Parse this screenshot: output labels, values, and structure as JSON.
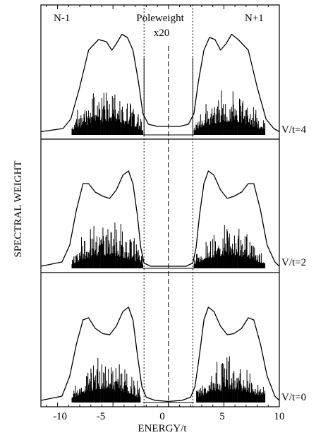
{
  "chart_data": {
    "type": "line",
    "xlabel": "ENERGY/t",
    "ylabel": "SPECTRAL WEIGHT",
    "xlim": [
      -11.5,
      10
    ],
    "xticks": [
      -10,
      -5,
      0,
      5,
      10
    ],
    "xtick_labels": [
      "-10",
      "-5",
      "0",
      "5",
      "10"
    ],
    "annotations": {
      "left": "N-1",
      "right": "N+1",
      "pole_title": "Poleweight",
      "pole_scale": "x20"
    },
    "guide_lines": {
      "dotted_x": [
        -2.2,
        2.2
      ],
      "dashed_x": [
        0
      ]
    },
    "panels": [
      {
        "label": "V/t=4",
        "pole_range": [
          -8.7,
          -2.3
        ],
        "extra_poles": [
          {
            "x": -2.2,
            "h": 0.73
          },
          {
            "x": 2.2,
            "h": 0.73
          }
        ],
        "envelope": [
          [
            -11.5,
            0.03
          ],
          [
            -9.5,
            0.06
          ],
          [
            -8.8,
            0.15
          ],
          [
            -8.0,
            0.45
          ],
          [
            -7.2,
            0.8
          ],
          [
            -6.3,
            0.9
          ],
          [
            -5.6,
            0.88
          ],
          [
            -5.1,
            0.8
          ],
          [
            -4.7,
            0.86
          ],
          [
            -4.2,
            0.95
          ],
          [
            -3.7,
            0.92
          ],
          [
            -3.2,
            0.8
          ],
          [
            -2.7,
            0.5
          ],
          [
            -2.3,
            0.2
          ],
          [
            -1.8,
            0.1
          ],
          [
            -1.0,
            0.08
          ],
          [
            0.0,
            0.08
          ],
          [
            1.0,
            0.08
          ],
          [
            1.8,
            0.1
          ],
          [
            2.3,
            0.2
          ],
          [
            2.7,
            0.5
          ],
          [
            3.2,
            0.8
          ],
          [
            3.7,
            0.92
          ],
          [
            4.2,
            0.9
          ],
          [
            4.7,
            0.8
          ],
          [
            5.2,
            0.86
          ],
          [
            5.7,
            0.95
          ],
          [
            6.3,
            0.9
          ],
          [
            7.2,
            0.8
          ],
          [
            8.0,
            0.45
          ],
          [
            8.8,
            0.15
          ],
          [
            9.5,
            0.06
          ],
          [
            10.0,
            0.03
          ]
        ]
      },
      {
        "label": "V/t=2",
        "pole_range": [
          -8.7,
          -2.3
        ],
        "extra_poles": [],
        "envelope": [
          [
            -11.5,
            0.02
          ],
          [
            -9.6,
            0.06
          ],
          [
            -8.9,
            0.22
          ],
          [
            -8.3,
            0.55
          ],
          [
            -7.7,
            0.8
          ],
          [
            -7.2,
            0.8
          ],
          [
            -6.6,
            0.72
          ],
          [
            -5.9,
            0.68
          ],
          [
            -5.3,
            0.66
          ],
          [
            -4.7,
            0.74
          ],
          [
            -4.1,
            0.88
          ],
          [
            -3.6,
            0.92
          ],
          [
            -3.2,
            0.8
          ],
          [
            -2.8,
            0.5
          ],
          [
            -2.5,
            0.2
          ],
          [
            -2.2,
            0.05
          ],
          [
            -1.6,
            0.02
          ],
          [
            0.0,
            0.02
          ],
          [
            1.6,
            0.02
          ],
          [
            2.2,
            0.05
          ],
          [
            2.5,
            0.2
          ],
          [
            2.8,
            0.5
          ],
          [
            3.2,
            0.8
          ],
          [
            3.6,
            0.92
          ],
          [
            4.1,
            0.88
          ],
          [
            4.7,
            0.74
          ],
          [
            5.3,
            0.66
          ],
          [
            5.9,
            0.68
          ],
          [
            6.6,
            0.72
          ],
          [
            7.2,
            0.8
          ],
          [
            7.7,
            0.8
          ],
          [
            8.3,
            0.55
          ],
          [
            8.9,
            0.22
          ],
          [
            9.6,
            0.06
          ],
          [
            10.0,
            0.02
          ]
        ]
      },
      {
        "label": "V/t=0",
        "pole_range": [
          -8.7,
          -2.5
        ],
        "extra_poles": [],
        "envelope": [
          [
            -11.5,
            0.02
          ],
          [
            -9.6,
            0.06
          ],
          [
            -8.9,
            0.25
          ],
          [
            -8.3,
            0.55
          ],
          [
            -7.7,
            0.78
          ],
          [
            -7.2,
            0.8
          ],
          [
            -6.6,
            0.7
          ],
          [
            -5.9,
            0.65
          ],
          [
            -5.3,
            0.64
          ],
          [
            -4.7,
            0.72
          ],
          [
            -4.1,
            0.86
          ],
          [
            -3.6,
            0.9
          ],
          [
            -3.2,
            0.78
          ],
          [
            -2.8,
            0.45
          ],
          [
            -2.4,
            0.15
          ],
          [
            -2.0,
            0.05
          ],
          [
            -1.2,
            0.02
          ],
          [
            0.0,
            0.01
          ],
          [
            1.2,
            0.02
          ],
          [
            2.0,
            0.05
          ],
          [
            2.4,
            0.15
          ],
          [
            2.8,
            0.45
          ],
          [
            3.2,
            0.78
          ],
          [
            3.6,
            0.9
          ],
          [
            4.1,
            0.86
          ],
          [
            4.7,
            0.72
          ],
          [
            5.3,
            0.64
          ],
          [
            5.9,
            0.65
          ],
          [
            6.6,
            0.7
          ],
          [
            7.2,
            0.8
          ],
          [
            7.7,
            0.78
          ],
          [
            8.3,
            0.55
          ],
          [
            8.9,
            0.25
          ],
          [
            9.6,
            0.06
          ],
          [
            10.0,
            0.02
          ]
        ]
      }
    ]
  }
}
